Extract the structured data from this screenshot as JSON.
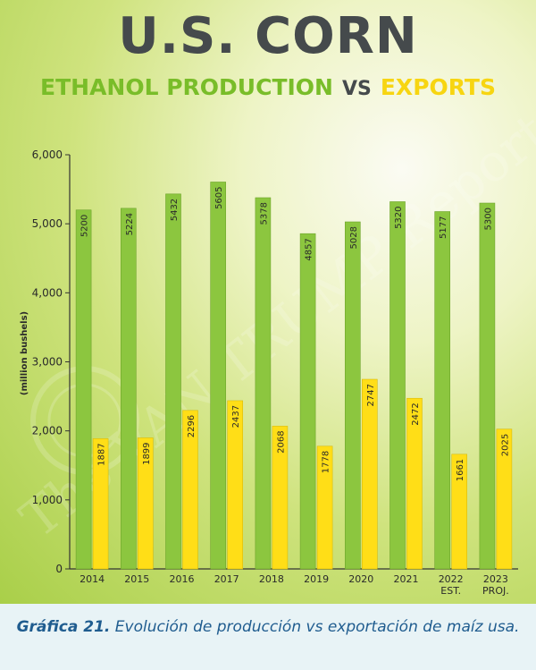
{
  "header": {
    "title": "U.S. CORN",
    "subtitle_left": "ETHANOL PRODUCTION",
    "subtitle_vs": "VS",
    "subtitle_right": "EXPORTS"
  },
  "watermark": {
    "text": "The VAN TRUMP Report"
  },
  "caption": {
    "label": "Gráfica 21.",
    "text": "Evolución de producción vs exportación de maíz usa."
  },
  "colors": {
    "ethanol": "#8cc63f",
    "exports": "#ffde17",
    "title": "#454a4c",
    "caption": "#1f5c8f"
  },
  "chart_data": {
    "type": "bar",
    "ylabel": "(million bushels)",
    "ylim": [
      0,
      6000
    ],
    "yticks": [
      "0",
      "1,000",
      "2,000",
      "3,000",
      "4,000",
      "5,000",
      "6,000"
    ],
    "ytick_values": [
      0,
      1000,
      2000,
      3000,
      4000,
      5000,
      6000
    ],
    "categories": [
      "2014",
      "2015",
      "2016",
      "2017",
      "2018",
      "2019",
      "2020",
      "2021",
      "2022\nEST.",
      "2023\nPROJ."
    ],
    "series": [
      {
        "name": "ETHANOL PRODUCTION",
        "color": "#8cc63f",
        "values": [
          5200,
          5224,
          5432,
          5605,
          5378,
          4857,
          5028,
          5320,
          5177,
          5300
        ]
      },
      {
        "name": "EXPORTS",
        "color": "#ffde17",
        "values": [
          1887,
          1899,
          2296,
          2437,
          2068,
          1778,
          2747,
          2472,
          1661,
          2025
        ]
      }
    ],
    "grid": false,
    "legend": "none"
  }
}
